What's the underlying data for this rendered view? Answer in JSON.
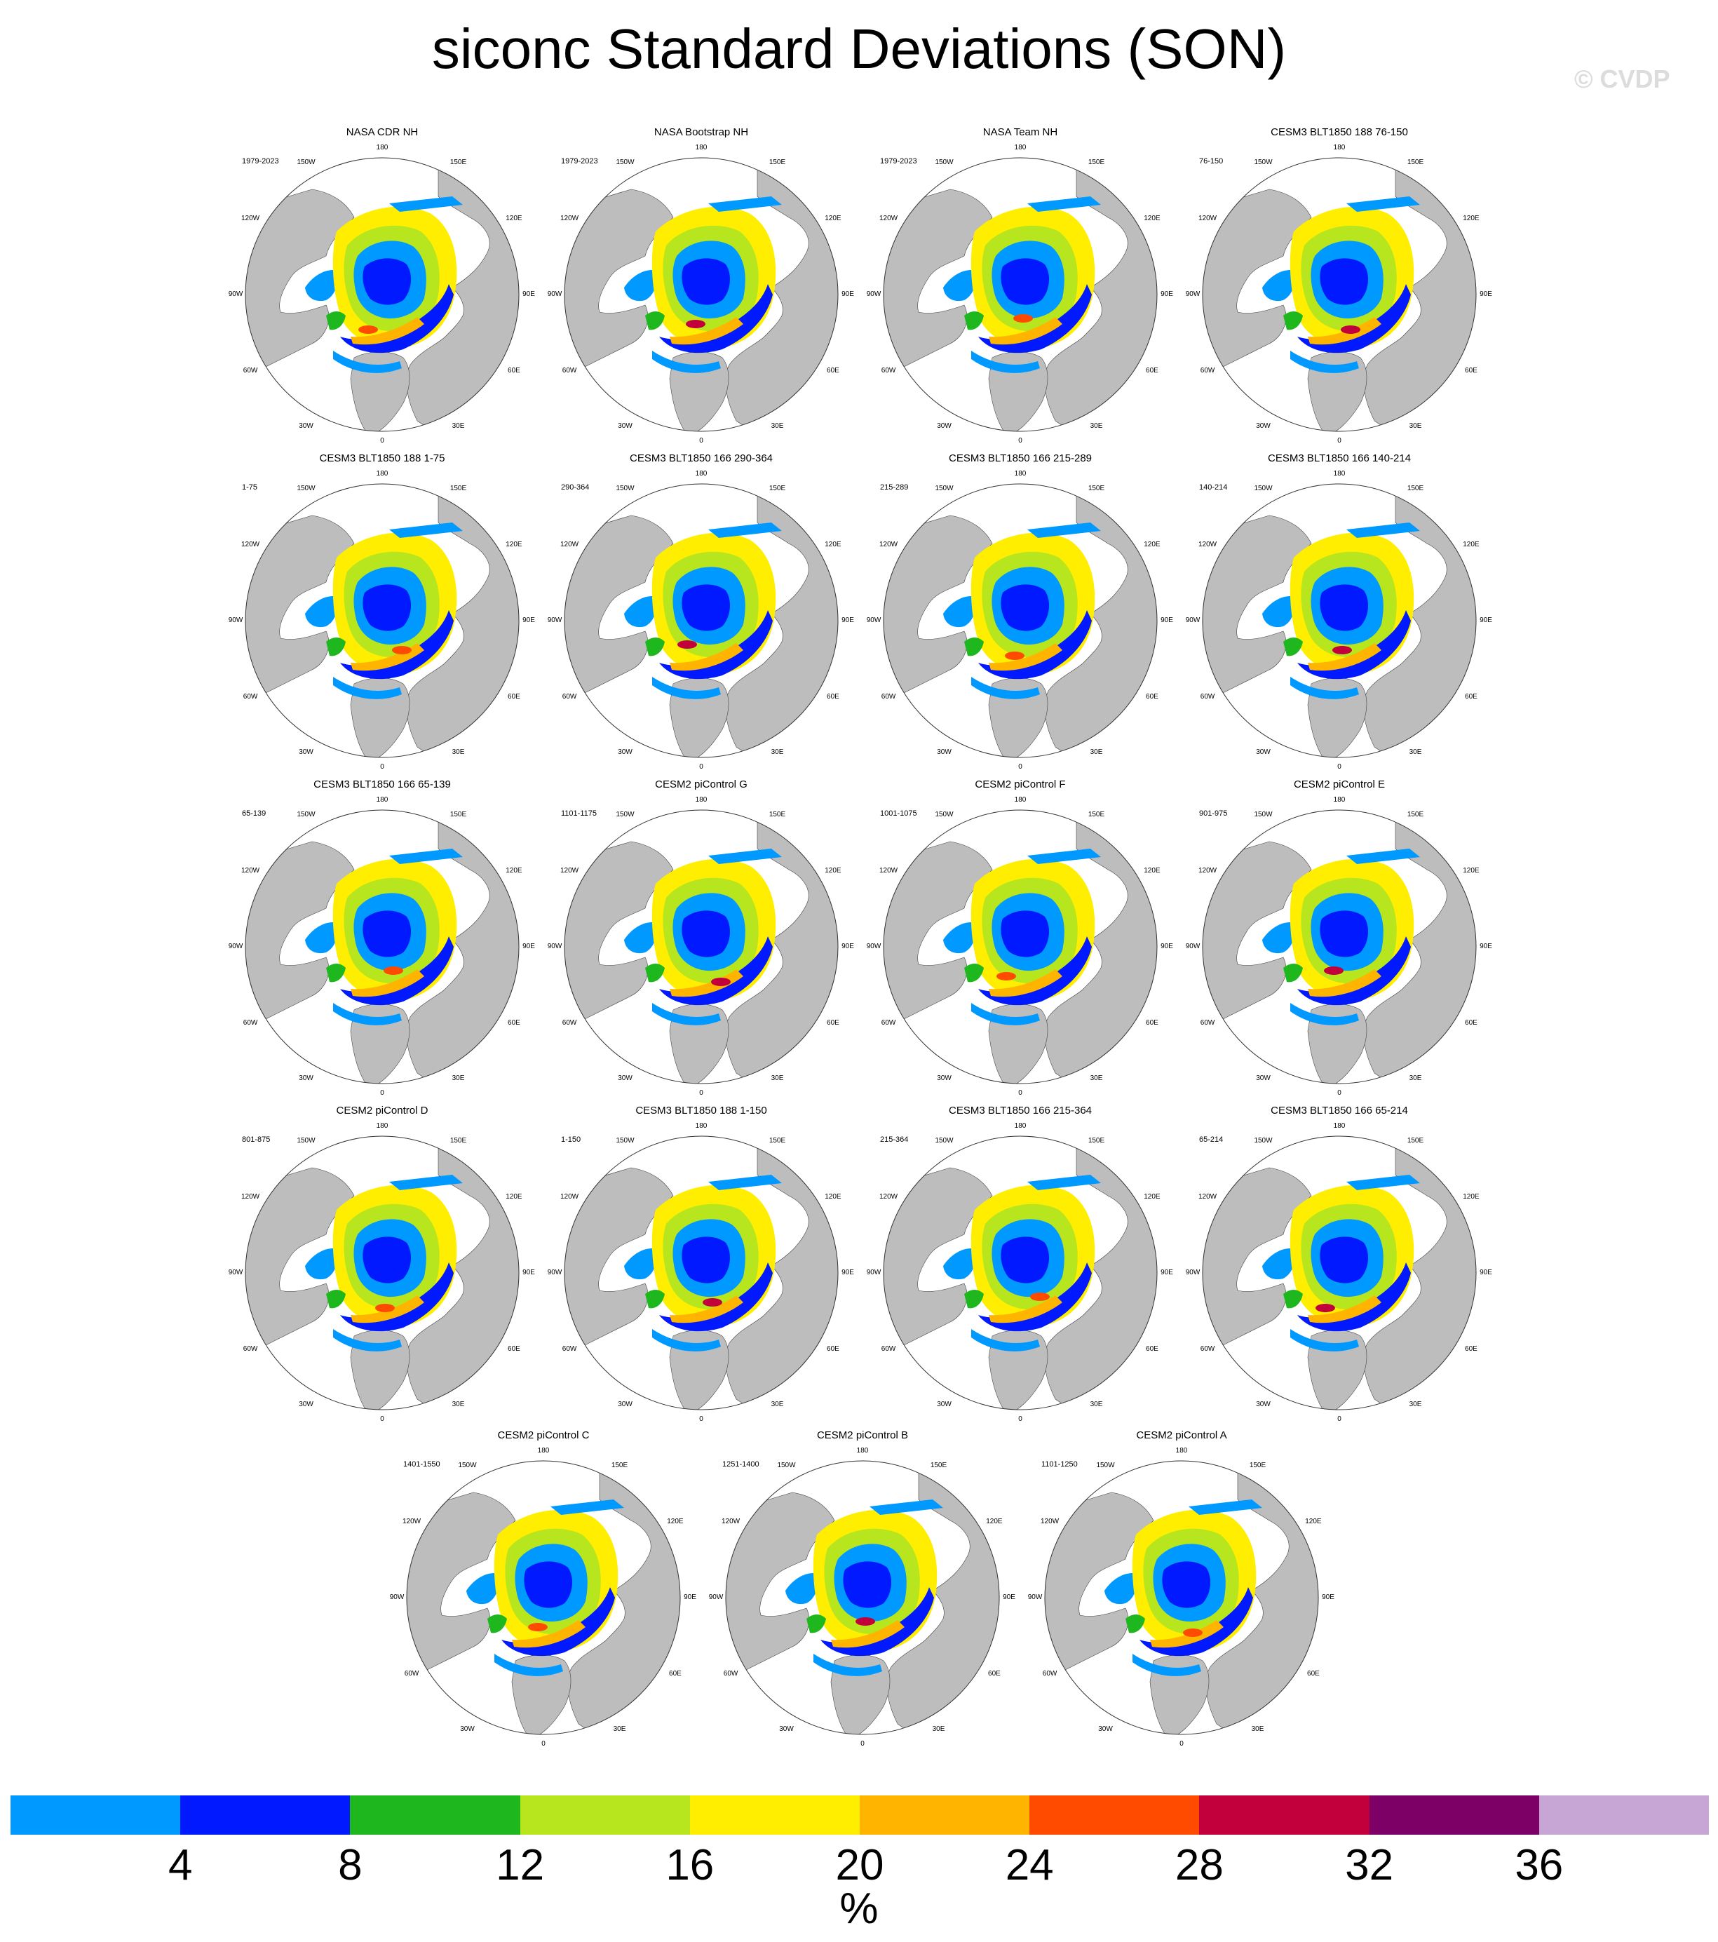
{
  "title": "siconc Standard Deviations (SON)",
  "credit": "© CVDP",
  "lon_labels": [
    "180",
    "150E",
    "120E",
    "90E",
    "60E",
    "30E",
    "0",
    "30W",
    "60W",
    "90W",
    "120W",
    "150W"
  ],
  "panels": [
    {
      "title": "NASA CDR NH",
      "period": "1979-2023"
    },
    {
      "title": "NASA Bootstrap NH",
      "period": "1979-2023"
    },
    {
      "title": "NASA Team NH",
      "period": "1979-2023"
    },
    {
      "title": "CESM3 BLT1850 188 76-150",
      "period": "76-150"
    },
    {
      "title": "CESM3 BLT1850 188 1-75",
      "period": "1-75"
    },
    {
      "title": "CESM3 BLT1850 166 290-364",
      "period": "290-364"
    },
    {
      "title": "CESM3 BLT1850 166 215-289",
      "period": "215-289"
    },
    {
      "title": "CESM3 BLT1850 166 140-214",
      "period": "140-214"
    },
    {
      "title": "CESM3 BLT1850 166 65-139",
      "period": "65-139"
    },
    {
      "title": "CESM2 piControl G",
      "period": "1101-1175"
    },
    {
      "title": "CESM2 piControl F",
      "period": "1001-1075"
    },
    {
      "title": "CESM2 piControl E",
      "period": "901-975"
    },
    {
      "title": "CESM2 piControl D",
      "period": "801-875"
    },
    {
      "title": "CESM3 BLT1850 188 1-150",
      "period": "1-150"
    },
    {
      "title": "CESM3 BLT1850 166 215-364",
      "period": "215-364"
    },
    {
      "title": "CESM3 BLT1850 166 65-214",
      "period": "65-214"
    },
    {
      "title": "CESM2 piControl C",
      "period": "1401-1550"
    },
    {
      "title": "CESM2 piControl B",
      "period": "1251-1400"
    },
    {
      "title": "CESM2 piControl A",
      "period": "1101-1250"
    }
  ],
  "colorbar": {
    "colors": [
      "#0099ff",
      "#0019ff",
      "#1eb81e",
      "#b8e61e",
      "#ffee00",
      "#ffb400",
      "#ff4b00",
      "#c2003c",
      "#7d0067",
      "#c7a6d6"
    ],
    "ticks": [
      "4",
      "8",
      "12",
      "16",
      "20",
      "24",
      "28",
      "32",
      "36"
    ],
    "units": "%"
  },
  "colors": {
    "land": "#bdbdbd",
    "ocean": "#ffffff"
  }
}
